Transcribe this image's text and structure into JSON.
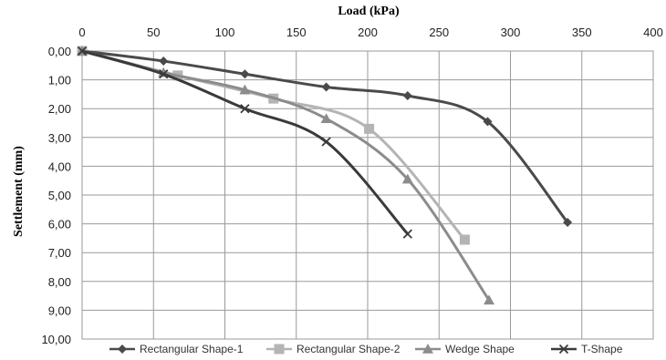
{
  "chart_data": {
    "type": "line",
    "title": "",
    "xlabel": "Load (kPa)",
    "ylabel": "Settlement (mm)",
    "xlim": [
      0,
      400
    ],
    "ylim": [
      0,
      10
    ],
    "x_axis_position": "top",
    "y_axis_inverted": true,
    "grid": true,
    "legend_position": "bottom",
    "x_ticks": [
      "0",
      "50",
      "100",
      "150",
      "200",
      "250",
      "300",
      "350",
      "400"
    ],
    "y_ticks": [
      "0,00",
      "1,00",
      "2,00",
      "3,00",
      "4,00",
      "5,00",
      "6,00",
      "7,00",
      "8,00",
      "9,00",
      "10,00"
    ],
    "series": [
      {
        "name": "Rectangular Shape-1",
        "marker": "diamond",
        "color": "#4a4a4a",
        "x": [
          0,
          57,
          114,
          171,
          228,
          284,
          340
        ],
        "y": [
          0,
          0.35,
          0.8,
          1.25,
          1.55,
          2.45,
          5.95
        ]
      },
      {
        "name": "Rectangular Shape-2",
        "marker": "square",
        "color": "#b4b4b4",
        "x": [
          0,
          67,
          134,
          201,
          268
        ],
        "y": [
          0,
          0.85,
          1.65,
          2.7,
          6.55
        ]
      },
      {
        "name": "Wedge Shape",
        "marker": "triangle",
        "color": "#8c8c8c",
        "x": [
          0,
          57,
          114,
          171,
          228,
          285
        ],
        "y": [
          0,
          0.75,
          1.35,
          2.35,
          4.45,
          8.65
        ]
      },
      {
        "name": "T-Shape",
        "marker": "x",
        "color": "#3a3a3a",
        "x": [
          0,
          57,
          114,
          171,
          228
        ],
        "y": [
          0,
          0.8,
          2.0,
          3.15,
          6.35
        ]
      }
    ]
  }
}
